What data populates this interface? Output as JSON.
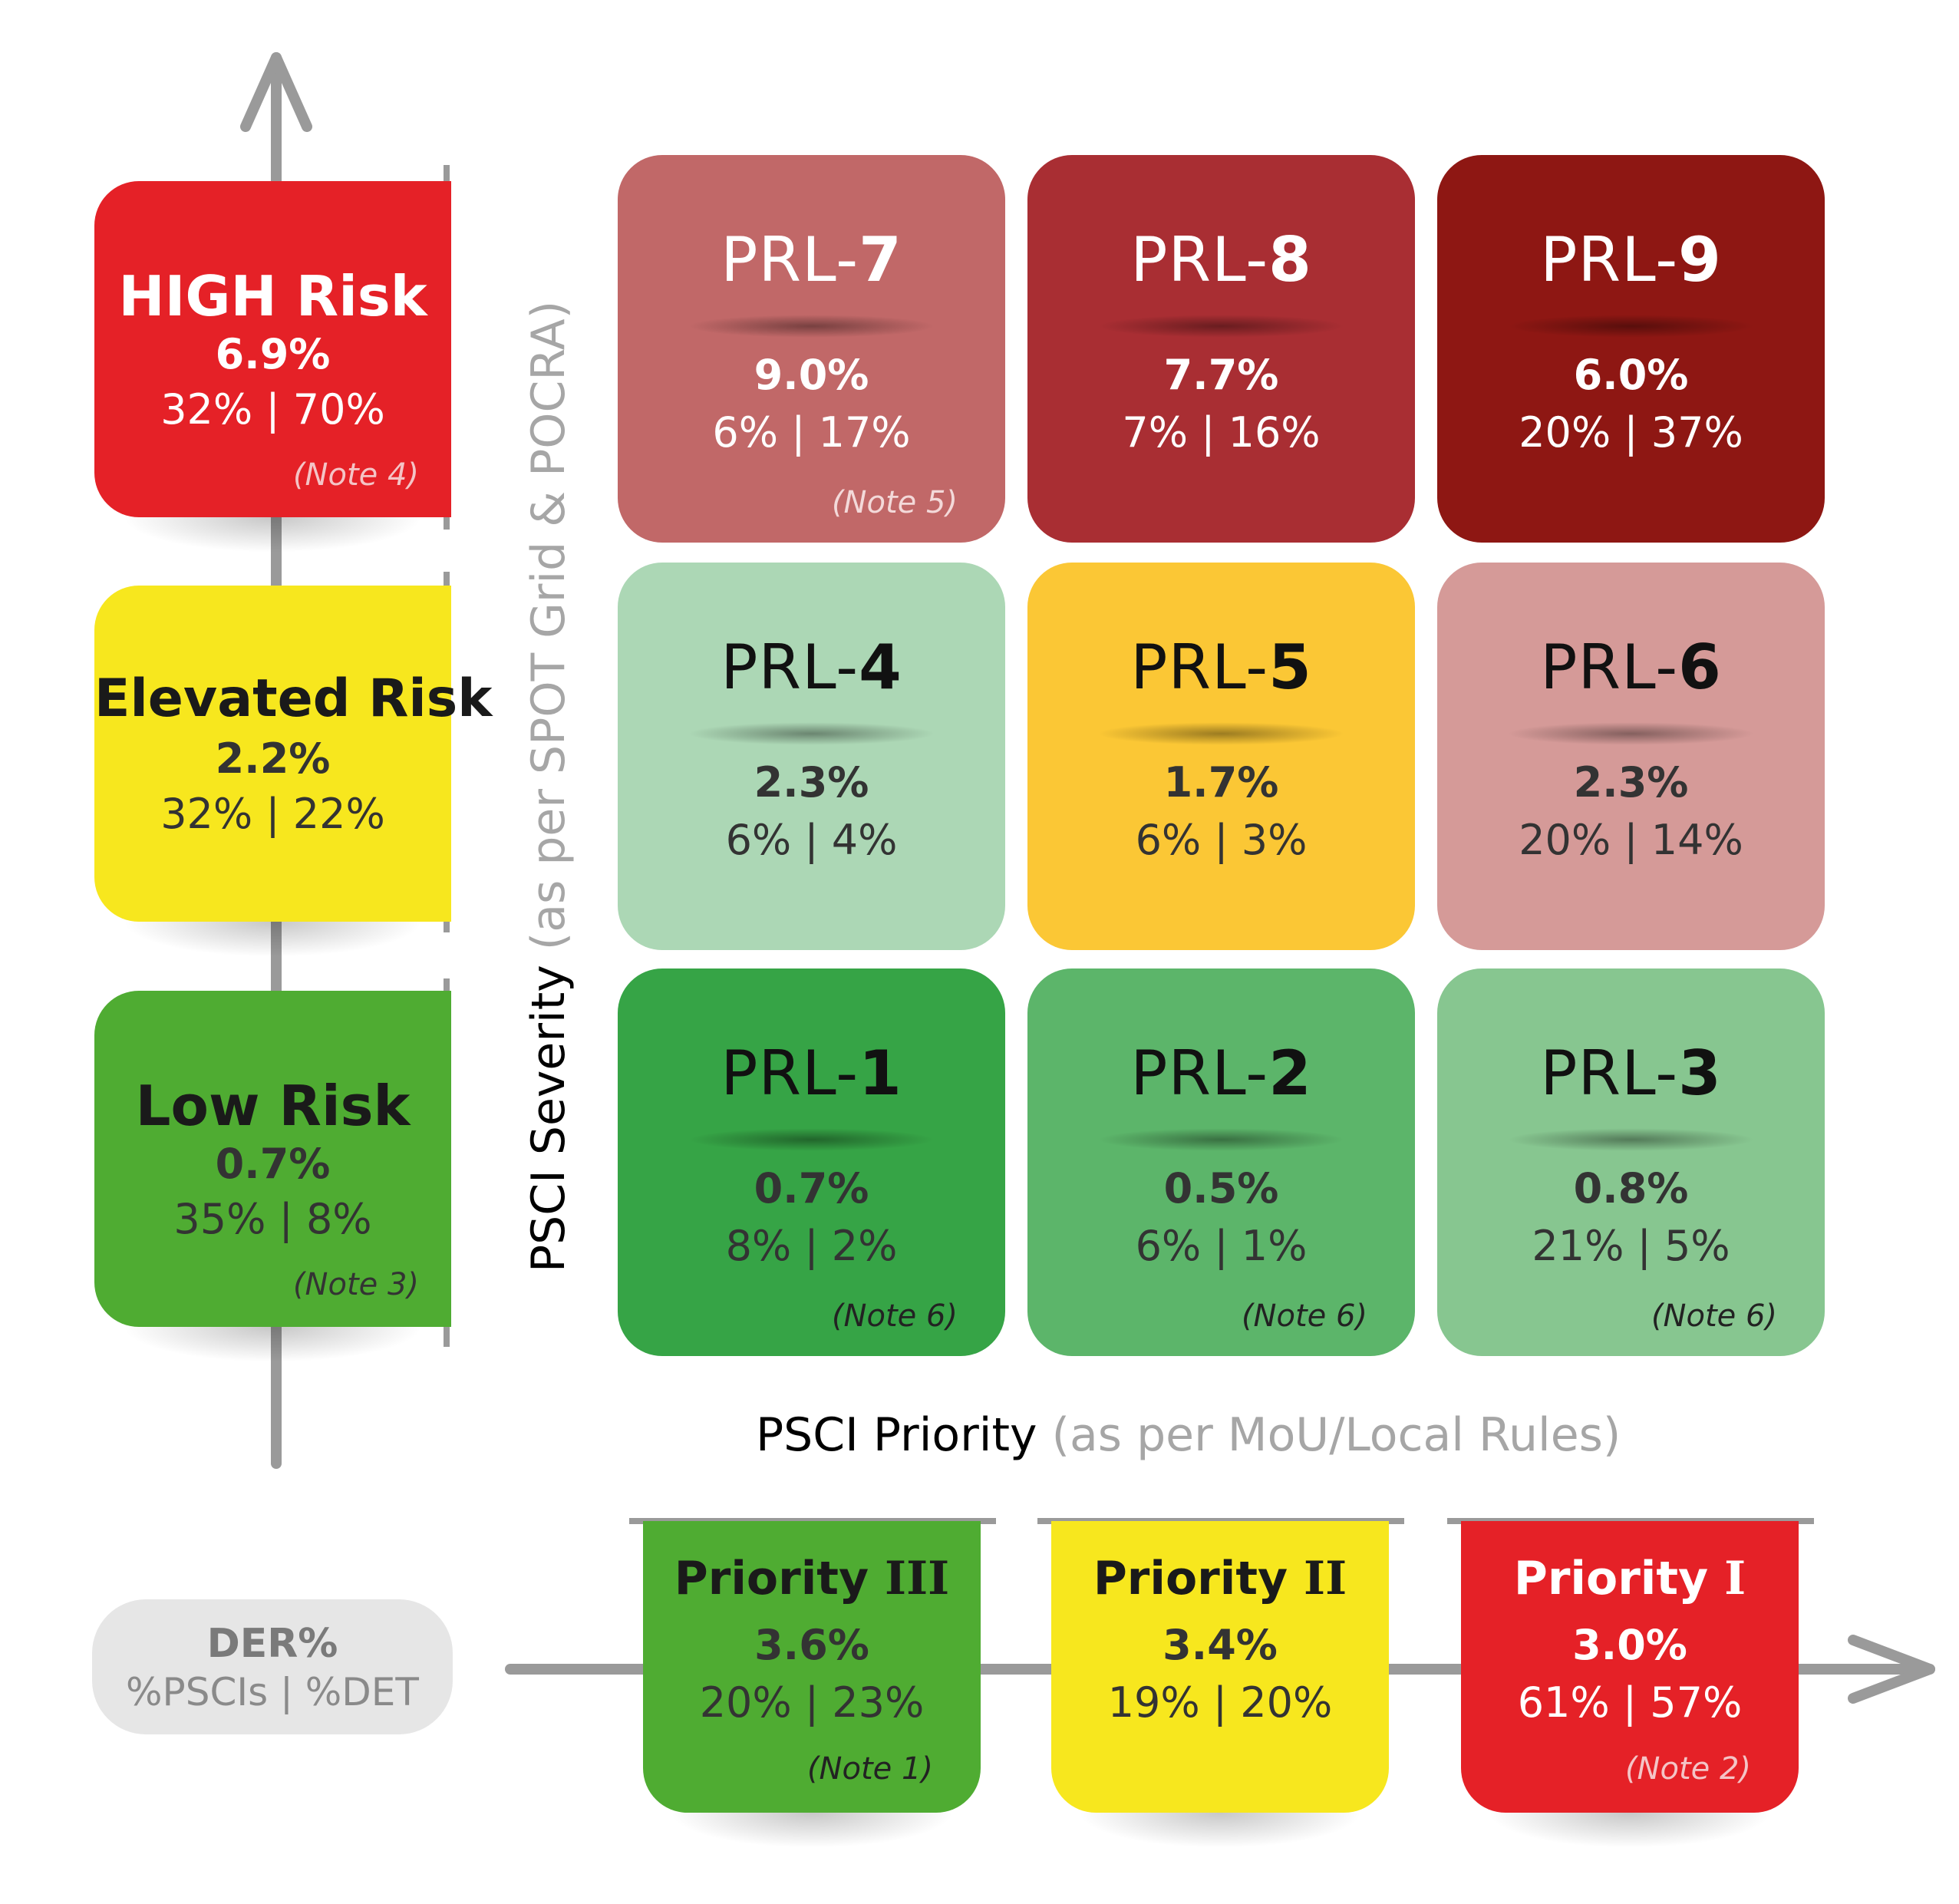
{
  "colors": {
    "high": "#e52127",
    "elevated": "#f7e71e",
    "low": "#4fac32",
    "prl7": "#c16868",
    "prl8": "#a92e33",
    "prl9": "#8e1713",
    "prl4": "#acd7b5",
    "prl5": "#fbc735",
    "prl6": "#d59a98",
    "prl1": "#36a446",
    "prl2": "#5cb56a",
    "prl3": "#87c690",
    "der": "#e6e6e6",
    "axis": "#9a9a9a",
    "muted_text": "#a6a6a6"
  },
  "risk": {
    "high": {
      "title": "HIGH Risk",
      "der": "6.9%",
      "split": "32% | 70%",
      "note": "(Note 4)"
    },
    "elevated": {
      "title": "Elevated Risk",
      "der": "2.2%",
      "split": "32% | 22%"
    },
    "low": {
      "title": "Low Risk",
      "der": "0.7%",
      "split": "35% | 8%",
      "note": "(Note 3)"
    }
  },
  "grid": {
    "prefix": "PRL-",
    "prl7": {
      "num": "7",
      "der": "9.0%",
      "split": "6% | 17%",
      "note": "(Note 5)"
    },
    "prl8": {
      "num": "8",
      "der": "7.7%",
      "split": "7% | 16%"
    },
    "prl9": {
      "num": "9",
      "der": "6.0%",
      "split": "20% | 37%"
    },
    "prl4": {
      "num": "4",
      "der": "2.3%",
      "split": "6% | 4%"
    },
    "prl5": {
      "num": "5",
      "der": "1.7%",
      "split": "6% | 3%"
    },
    "prl6": {
      "num": "6",
      "der": "2.3%",
      "split": "20% | 14%"
    },
    "prl1": {
      "num": "1",
      "der": "0.7%",
      "split": "8% | 2%",
      "note": "(Note 6)"
    },
    "prl2": {
      "num": "2",
      "der": "0.5%",
      "split": "6% | 1%",
      "note": "(Note 6)"
    },
    "prl3": {
      "num": "3",
      "der": "0.8%",
      "split": "21% | 5%",
      "note": "(Note 6)"
    }
  },
  "axes": {
    "y_main": "PSCI Severity",
    "y_sub": "(as per SPOT Grid & POCRA)",
    "x_main": "PSCI Priority",
    "x_sub": "(as per MoU/Local Rules)"
  },
  "legend": {
    "title": "DER%",
    "sub": "%PSCIs | %DET"
  },
  "priority": {
    "label": "Priority",
    "p3": {
      "numeral": "III",
      "der": "3.6%",
      "split": "20% | 23%",
      "note": "(Note 1)"
    },
    "p2": {
      "numeral": "II",
      "der": "3.4%",
      "split": "19% | 20%"
    },
    "p1": {
      "numeral": "I",
      "der": "3.0%",
      "split": "61% | 57%",
      "note": "(Note 2)"
    }
  }
}
